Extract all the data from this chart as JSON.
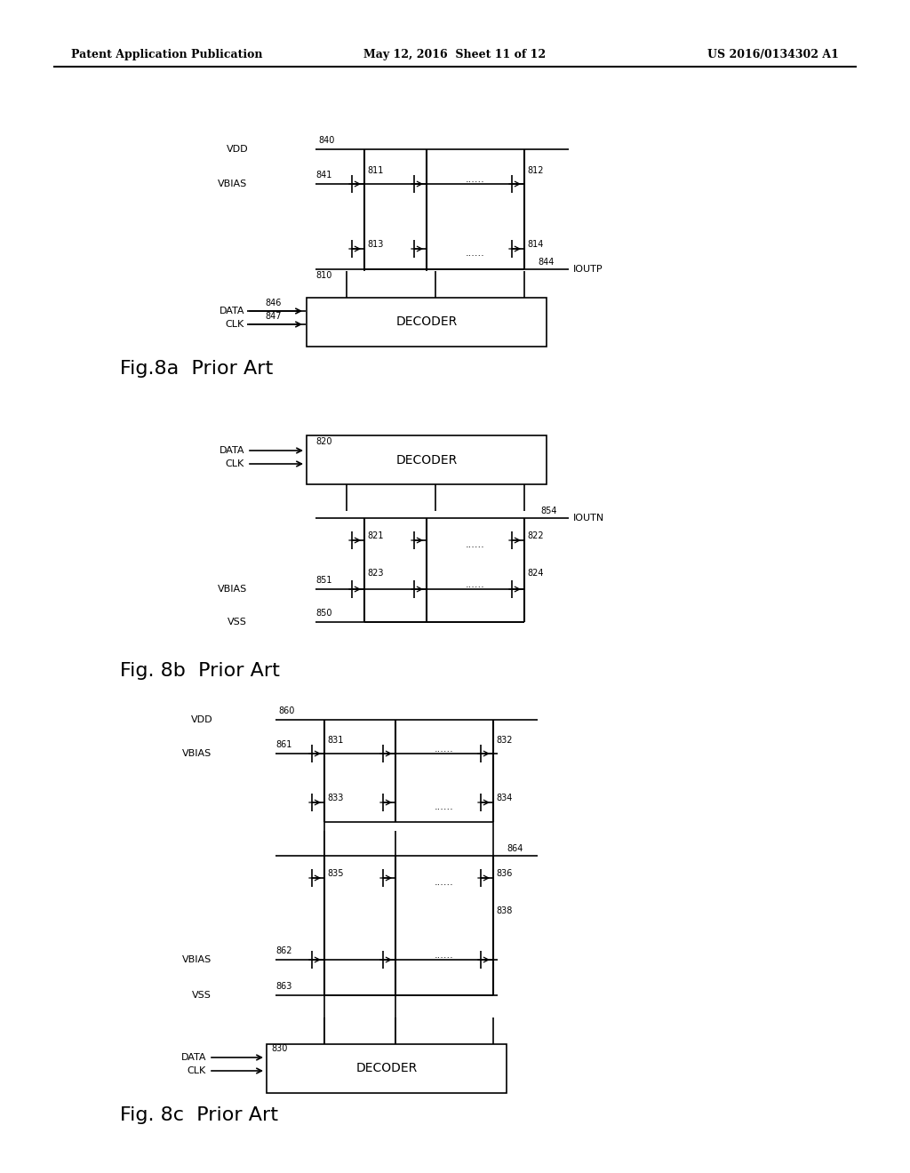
{
  "header_left": "Patent Application Publication",
  "header_mid": "May 12, 2016  Sheet 11 of 12",
  "header_right": "US 2016/0134302 A1",
  "bg_color": "#ffffff",
  "line_color": "#000000",
  "fig8a_caption": "Fig.8a  Prior Art",
  "fig8b_caption": "Fig. 8b  Prior Art",
  "fig8c_caption": "Fig. 8c  Prior Art"
}
